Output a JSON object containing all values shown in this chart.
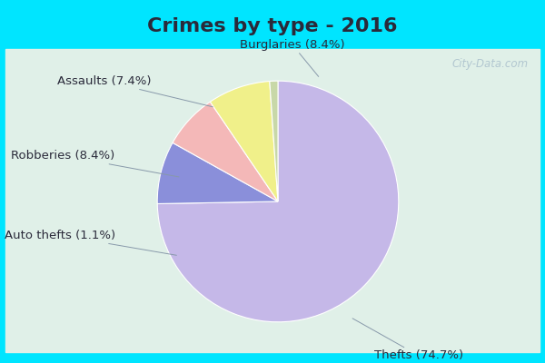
{
  "title": "Crimes by type - 2016",
  "labels": [
    "Thefts",
    "Burglaries",
    "Assaults",
    "Robberies",
    "Auto thefts"
  ],
  "values": [
    74.7,
    8.4,
    7.4,
    8.4,
    1.1
  ],
  "colors": [
    "#c5b8e8",
    "#8a8fda",
    "#f4b8b8",
    "#f0f08a",
    "#c8d8a8"
  ],
  "background_top": "#00e5ff",
  "background_inner": "#e8f5e8",
  "label_texts": [
    "Thefts (74.7%)",
    "Burglaries (8.4%)",
    "Assaults (7.4%)",
    "Robberies (8.4%)",
    "Auto thefts (1.1%)"
  ],
  "title_fontsize": 16,
  "label_fontsize": 9.5,
  "watermark": "City-Data.com",
  "startangle": 90,
  "title_color": "#2a2a3a",
  "label_color": "#2a2a3a"
}
